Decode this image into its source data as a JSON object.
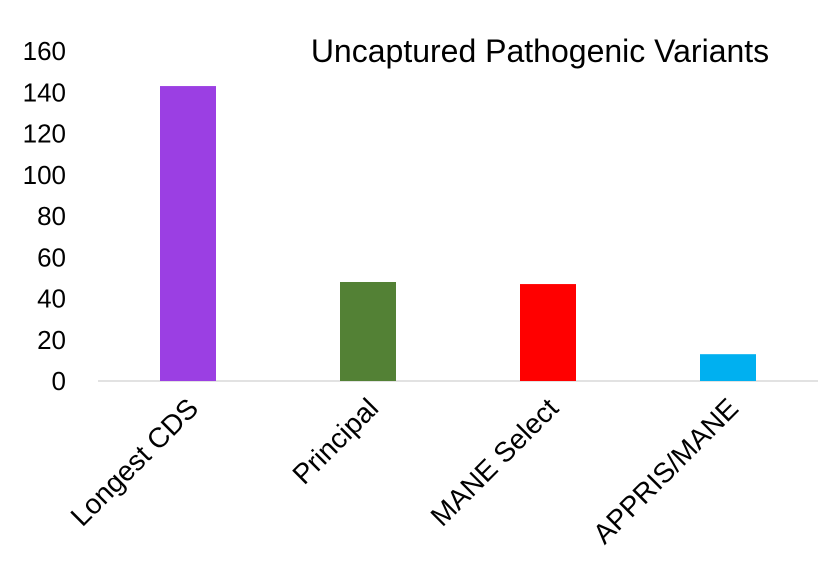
{
  "chart_data": {
    "type": "bar",
    "title": "Uncaptured Pathogenic Variants",
    "xlabel": "",
    "ylabel": "",
    "categories": [
      "Longest CDS",
      "Principal",
      "MANE Select",
      "APPRIS/MANE"
    ],
    "values": [
      143,
      48,
      47,
      13
    ],
    "colors": [
      "#9B3FE3",
      "#538135",
      "#FF0000",
      "#00B0F0"
    ],
    "ylim": [
      0,
      160
    ],
    "yticks": [
      "0",
      "20",
      "40",
      "60",
      "80",
      "100",
      "120",
      "140",
      "160"
    ],
    "grid": false,
    "legend": "none",
    "axis_color": "#D9D9D9"
  }
}
